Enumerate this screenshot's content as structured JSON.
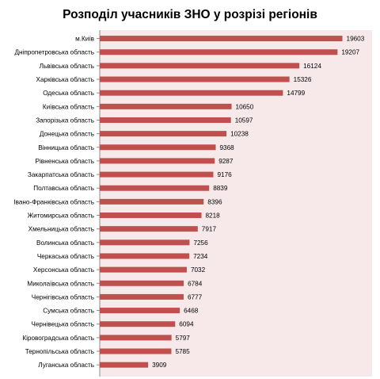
{
  "chart_data": {
    "type": "bar",
    "orientation": "horizontal",
    "title": "Розподіл учасників ЗНО у розрізі регіонів",
    "xlim": [
      0,
      22000
    ],
    "grid": false,
    "plot_background": "#f7e9e9",
    "bar_color": "#c0504d",
    "categories": [
      "м.Київ",
      "Дніпропетровська область",
      "Львівська область",
      "Харківська область",
      "Одеська область",
      "Київська область",
      "Запорізька область",
      "Донецька область",
      "Вінницька область",
      "Рівненська область",
      "Закарпатська область",
      "Полтавська область",
      "Івано-Франківська область",
      "Житомирська область",
      "Хмельницька область",
      "Волинська область",
      "Черкаська область",
      "Херсонська область",
      "Миколаївська область",
      "Чернігівська область",
      "Сумська область",
      "Чернівецька область",
      "Кіровоградська область",
      "Тернопільська область",
      "Луганська область"
    ],
    "values": [
      19603,
      19207,
      16124,
      15326,
      14799,
      10650,
      10597,
      10238,
      9368,
      9287,
      9176,
      8839,
      8396,
      8218,
      7917,
      7256,
      7234,
      7032,
      6784,
      6777,
      6468,
      6094,
      5797,
      5785,
      3909
    ]
  }
}
